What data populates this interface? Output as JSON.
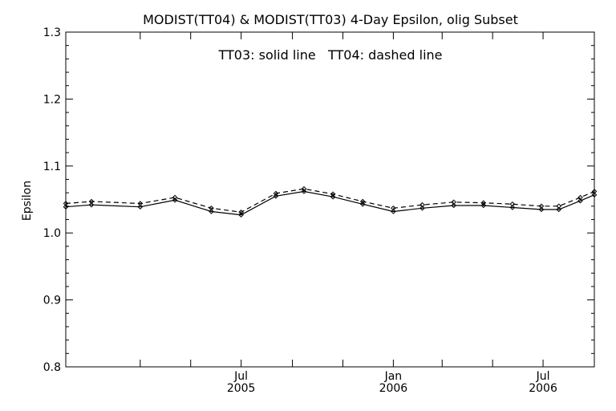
{
  "chart_data": {
    "type": "line",
    "title": "MODIST(TT04) & MODIST(TT03) 4-Day Epsilon, olig Subset",
    "annotation": "TT03: solid line   TT04: dashed line",
    "xlabel": "",
    "ylabel": "Epsilon",
    "xlim": [
      "2004-12-01",
      "2006-09-01"
    ],
    "ylim": [
      0.8,
      1.3
    ],
    "y_ticks": [
      "0.8",
      "0.9",
      "1.0",
      "1.1",
      "1.2",
      "1.3"
    ],
    "x_tick_labels": [
      {
        "date": "2005-07-01",
        "month": "Jul",
        "year": "2005"
      },
      {
        "date": "2006-01-01",
        "month": "Jan",
        "year": "2006"
      },
      {
        "date": "2006-07-01",
        "month": "Jul",
        "year": "2006"
      }
    ],
    "x_minor_ticks": [
      "2005-03-01",
      "2005-05-01",
      "2005-07-01",
      "2005-09-01",
      "2005-11-01",
      "2006-01-01",
      "2006-03-01",
      "2006-05-01",
      "2006-07-01"
    ],
    "grid": false,
    "series": [
      {
        "line_style": "solid",
        "x": [
          "2004-12-01",
          "2005-01-01",
          "2005-03-01",
          "2005-04-12",
          "2005-05-26",
          "2005-07-01",
          "2005-08-12",
          "2005-09-15",
          "2005-10-20",
          "2005-11-25",
          "2006-01-01",
          "2006-02-05",
          "2006-03-15",
          "2006-04-20",
          "2006-05-25",
          "2006-06-29",
          "2006-07-20",
          "2006-08-15",
          "2006-09-01"
        ],
        "values": [
          1.039,
          1.042,
          1.039,
          1.049,
          1.032,
          1.027,
          1.055,
          1.062,
          1.054,
          1.043,
          1.032,
          1.037,
          1.041,
          1.041,
          1.038,
          1.035,
          1.035,
          1.048,
          1.057
        ]
      },
      {
        "line_style": "dashed",
        "x": [
          "2004-12-01",
          "2005-01-01",
          "2005-03-01",
          "2005-04-12",
          "2005-05-26",
          "2005-07-01",
          "2005-08-12",
          "2005-09-15",
          "2005-10-20",
          "2005-11-25",
          "2006-01-01",
          "2006-02-05",
          "2006-03-15",
          "2006-04-20",
          "2006-05-25",
          "2006-06-29",
          "2006-07-20",
          "2006-08-15",
          "2006-09-01"
        ],
        "values": [
          1.044,
          1.047,
          1.044,
          1.053,
          1.037,
          1.031,
          1.059,
          1.066,
          1.058,
          1.047,
          1.037,
          1.042,
          1.046,
          1.045,
          1.043,
          1.04,
          1.04,
          1.053,
          1.062
        ]
      }
    ]
  }
}
